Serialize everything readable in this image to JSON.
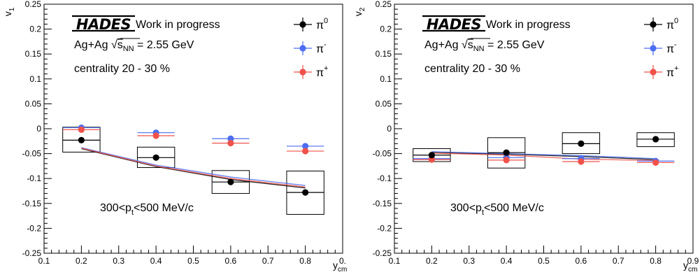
{
  "chart_data": [
    {
      "type": "scatter",
      "ylabel": "v",
      "ylabel_sub": "1",
      "xlabel": "y",
      "xlabel_sub": "cm",
      "xlim": [
        0.1,
        0.9
      ],
      "ylim": [
        -0.25,
        0.25
      ],
      "x_ticks": [
        "0.1",
        "0.2",
        "0.3",
        "0.4",
        "0.5",
        "0.6",
        "0.7",
        "0.8",
        "0."
      ],
      "y_ticks": [
        "-0.25",
        "-0.2",
        "-0.15",
        "-0.1",
        "-0.05",
        "0",
        "0.05",
        "0.1",
        "0.15",
        "0.2",
        "0.25"
      ],
      "logo": "HADES",
      "status": "Work in progress",
      "system": "Ag+Ag",
      "energy_sym": "s",
      "energy_sub": "NN",
      "energy_val": "= 2.55 GeV",
      "centrality": "centrality 20 - 30 %",
      "pt_cut": {
        "pre": "300<p",
        "sub": "t",
        "post": "<500 MeV/c"
      },
      "legend_position": "top-right",
      "series": [
        {
          "name": "π0",
          "label_base": "π",
          "label_sup": "0",
          "color": "#000000",
          "x": [
            0.2,
            0.4,
            0.6,
            0.8
          ],
          "y": [
            -0.023,
            -0.058,
            -0.107,
            -0.128
          ],
          "xerr": 0.05,
          "sys_boxes": [
            [
              -0.047,
              0.003
            ],
            [
              -0.078,
              -0.037
            ],
            [
              -0.13,
              -0.084
            ],
            [
              -0.172,
              -0.085
            ]
          ]
        },
        {
          "name": "π-",
          "label_base": "π",
          "label_sup": "-",
          "color": "#4d6ef0",
          "x": [
            0.2,
            0.4,
            0.6,
            0.8
          ],
          "y": [
            0.002,
            -0.008,
            -0.02,
            -0.035
          ],
          "xerr": 0.05
        },
        {
          "name": "π+",
          "label_base": "π",
          "label_sup": "+",
          "color": "#f0524a",
          "x": [
            0.2,
            0.4,
            0.6,
            0.8
          ],
          "y": [
            -0.002,
            -0.014,
            -0.029,
            -0.045
          ],
          "xerr": 0.05
        }
      ],
      "curves": [
        {
          "color": "#000000",
          "x": [
            0.2,
            0.4,
            0.6,
            0.8
          ],
          "y": [
            -0.04,
            -0.076,
            -0.102,
            -0.119
          ]
        },
        {
          "color": "#4d6ef0",
          "x": [
            0.2,
            0.4,
            0.6,
            0.8
          ],
          "y": [
            -0.038,
            -0.073,
            -0.097,
            -0.114
          ]
        },
        {
          "color": "#f0524a",
          "x": [
            0.2,
            0.4,
            0.6,
            0.8
          ],
          "y": [
            -0.039,
            -0.075,
            -0.1,
            -0.117
          ]
        }
      ]
    },
    {
      "type": "scatter",
      "ylabel": "v",
      "ylabel_sub": "2",
      "xlabel": "y",
      "xlabel_sub": "cm",
      "xlim": [
        0.1,
        0.9
      ],
      "ylim": [
        -0.25,
        0.25
      ],
      "x_ticks": [
        "0.1",
        "0.2",
        "0.3",
        "0.4",
        "0.5",
        "0.6",
        "0.7",
        "0.8",
        "0.9"
      ],
      "y_ticks": [
        "-0.25",
        "-0.2",
        "-0.15",
        "-0.1",
        "-0.05",
        "0",
        "0.05",
        "0.1",
        "0.15",
        "0.2",
        "0.25"
      ],
      "logo": "HADES",
      "status": "Work in progress",
      "system": "Ag+Ag",
      "energy_sym": "s",
      "energy_sub": "NN",
      "energy_val": "= 2.55 GeV",
      "centrality": "centrality 20 - 30 %",
      "pt_cut": {
        "pre": "300<p",
        "sub": "t",
        "post": "<500 MeV/c"
      },
      "legend_position": "top-right",
      "series": [
        {
          "name": "π0",
          "label_base": "π",
          "label_sup": "0",
          "color": "#000000",
          "x": [
            0.2,
            0.4,
            0.6,
            0.8
          ],
          "y": [
            -0.053,
            -0.048,
            -0.03,
            -0.021
          ],
          "xerr": 0.05,
          "sys_boxes": [
            [
              -0.066,
              -0.04
            ],
            [
              -0.079,
              -0.018
            ],
            [
              -0.05,
              -0.008
            ],
            [
              -0.036,
              -0.008
            ]
          ]
        },
        {
          "name": "π-",
          "label_base": "π",
          "label_sup": "-",
          "color": "#4d6ef0",
          "x": [
            0.2,
            0.4,
            0.6,
            0.8
          ],
          "y": [
            -0.06,
            -0.058,
            -0.06,
            -0.065
          ],
          "xerr": 0.05
        },
        {
          "name": "π+",
          "label_base": "π",
          "label_sup": "+",
          "color": "#f0524a",
          "x": [
            0.2,
            0.4,
            0.6,
            0.8
          ],
          "y": [
            -0.062,
            -0.063,
            -0.066,
            -0.068
          ],
          "xerr": 0.05
        }
      ],
      "curves": [
        {
          "color": "#000000",
          "x": [
            0.2,
            0.4,
            0.6,
            0.8
          ],
          "y": [
            -0.048,
            -0.051,
            -0.056,
            -0.062
          ]
        },
        {
          "color": "#4d6ef0",
          "x": [
            0.2,
            0.4,
            0.6,
            0.8
          ],
          "y": [
            -0.046,
            -0.05,
            -0.054,
            -0.06
          ]
        },
        {
          "color": "#f0524a",
          "x": [
            0.2,
            0.4,
            0.6,
            0.8
          ],
          "y": [
            -0.049,
            -0.053,
            -0.061,
            -0.064
          ]
        }
      ]
    }
  ]
}
